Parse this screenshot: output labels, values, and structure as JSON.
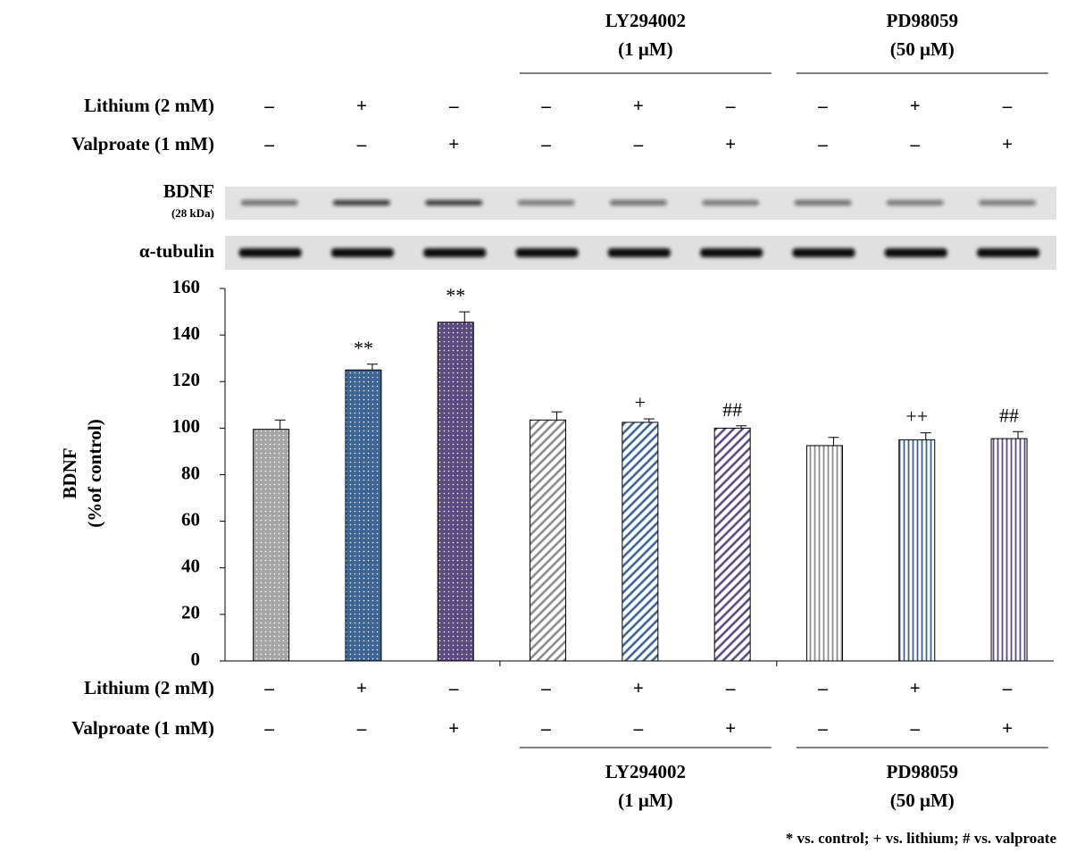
{
  "chart_data": {
    "type": "bar",
    "ylabel": "BDNF",
    "ylabel_sub": "(%of control)",
    "values": [
      99.5,
      125,
      145.5,
      103.5,
      102.5,
      100,
      92.5,
      95,
      95.5
    ],
    "errors": [
      4,
      2.5,
      4.5,
      3.5,
      1.5,
      1,
      3.5,
      3,
      3
    ],
    "annotations": [
      null,
      "**",
      "**",
      null,
      "+",
      "##",
      null,
      "++",
      "##"
    ],
    "colors": [
      "#a6a6a6",
      "#3d6496",
      "#5c4a82",
      "#8c8c8c",
      "#3d6496",
      "#5c4a82",
      "#8c8c8c",
      "#3d6496",
      "#5c4a82"
    ],
    "patterns": [
      "dots",
      "dots",
      "dots",
      "diagonal",
      "diagonal",
      "diagonal",
      "vertical",
      "vertical",
      "vertical"
    ],
    "ylim": [
      0,
      160
    ],
    "yticks": [
      0,
      20,
      40,
      60,
      80,
      100,
      120,
      140,
      160
    ]
  },
  "treatments": [
    {
      "label": "Lithium (2 mM)",
      "marks": [
        "–",
        "+",
        "–",
        "–",
        "+",
        "–",
        "–",
        "+",
        "–"
      ]
    },
    {
      "label": "Valproate (1 mM)",
      "marks": [
        "–",
        "–",
        "+",
        "–",
        "–",
        "+",
        "–",
        "–",
        "+"
      ]
    }
  ],
  "groups": [
    {
      "name": "LY294002",
      "dose": "(1 μM)"
    },
    {
      "name": "PD98059",
      "dose": "(50 μM)"
    }
  ],
  "blot": {
    "bdnf": "BDNF",
    "bdnf_size": "(28 kDa)",
    "tubulin": "α-tubulin"
  },
  "footnote": "* vs. control; + vs. lithium; # vs. valproate"
}
